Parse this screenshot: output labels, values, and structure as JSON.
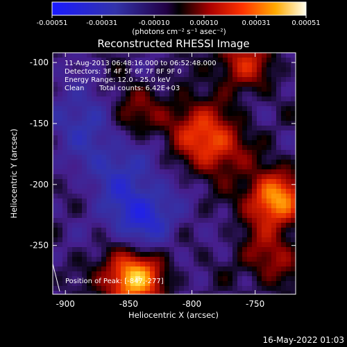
{
  "colorbar": {
    "tick_labels": [
      "-0.00051",
      "-0.00031",
      "-0.00010",
      "0.00010",
      "0.00031",
      "0.00051"
    ],
    "tick_values": [
      -0.00051,
      -0.00031,
      -0.0001,
      0.0001,
      0.00031,
      0.00051
    ],
    "range": [
      -0.00051,
      0.00051
    ],
    "unit_label": "(photons cm⁻² s⁻¹ asec⁻²)"
  },
  "title": "Reconstructed RHESSI Image",
  "info": {
    "time_line": "11-Aug-2013 06:48:16.000 to 06:52:48.000",
    "detectors_line": "Detectors: 3F 4F 5F 6F 7F 8F 9F 0",
    "energy_line": "Energy Range: 12.0 - 25.0 keV",
    "clean_label": "Clean",
    "counts_line": "Total counts: 6.42E+03"
  },
  "position_label": "Position of Peak: [-847,-277]",
  "footer_date": "16-May-2022 01:03",
  "chart_data": {
    "type": "heatmap",
    "title": "Reconstructed RHESSI Image",
    "xlabel": "Heliocentric X (arcsec)",
    "ylabel": "Heliocentric Y (arcsec)",
    "xlim": [
      -910,
      -718
    ],
    "ylim": [
      -290,
      -92
    ],
    "x_ticks": [
      -900,
      -850,
      -800,
      -750
    ],
    "y_ticks": [
      -100,
      -150,
      -200,
      -250
    ],
    "x_tick_labels": [
      "-900",
      "-850",
      "-800",
      "-750"
    ],
    "y_tick_labels": [
      "-100",
      "-150",
      "-200",
      "-250"
    ],
    "colorbar_range": [
      -0.00051,
      0.00051
    ],
    "peak_position": [
      -847,
      -277
    ],
    "hot_regions": [
      {
        "x": -847,
        "y": -277,
        "value": 0.00051
      },
      {
        "x": -735,
        "y": -212,
        "value": 0.00045
      },
      {
        "x": -780,
        "y": -170,
        "value": 0.0003
      },
      {
        "x": -760,
        "y": -100,
        "value": 0.00025
      },
      {
        "x": -850,
        "y": -140,
        "value": 0.00018
      },
      {
        "x": -800,
        "y": -150,
        "value": 0.00022
      },
      {
        "x": -738,
        "y": -260,
        "value": 0.0002
      }
    ],
    "cold_regions": [
      {
        "x": -840,
        "y": -225,
        "value": -0.0003
      },
      {
        "x": -885,
        "y": -145,
        "value": -0.0002
      },
      {
        "x": -860,
        "y": -185,
        "value": -0.00018
      }
    ]
  }
}
